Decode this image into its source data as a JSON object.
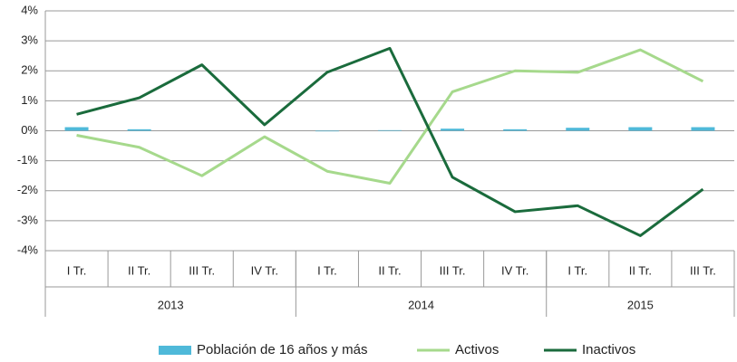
{
  "chart_data": {
    "type": "combo",
    "category_groups": [
      {
        "label": "2013",
        "categories": [
          "I Tr.",
          "II Tr.",
          "III Tr.",
          "IV Tr."
        ]
      },
      {
        "label": "2014",
        "categories": [
          "I Tr.",
          "II Tr.",
          "III Tr.",
          "IV Tr."
        ]
      },
      {
        "label": "2015",
        "categories": [
          "I Tr.",
          "II Tr.",
          "III Tr."
        ]
      }
    ],
    "series": [
      {
        "name": "Población de 16 años y más",
        "type": "bar",
        "color": "#4fb9d9",
        "values": [
          0.12,
          0.05,
          0,
          0,
          -0.02,
          0.02,
          0.07,
          0.05,
          0.1,
          0.12,
          0.12
        ]
      },
      {
        "name": "Activos",
        "type": "line",
        "color": "#a6d98c",
        "values": [
          -0.15,
          -0.55,
          -1.5,
          -0.2,
          -1.35,
          -1.75,
          1.3,
          2.0,
          1.95,
          2.7,
          1.65
        ]
      },
      {
        "name": "Inactivos",
        "type": "line",
        "color": "#1a6b3c",
        "values": [
          0.55,
          1.1,
          2.2,
          0.2,
          1.95,
          2.75,
          -1.55,
          -2.7,
          -2.5,
          -3.5,
          -1.95
        ]
      }
    ],
    "ylim": [
      -4,
      4
    ],
    "yticks": [
      {
        "value": -4,
        "label": "-4%"
      },
      {
        "value": -3,
        "label": "-3%"
      },
      {
        "value": -2,
        "label": "-2%"
      },
      {
        "value": -1,
        "label": "-1%"
      },
      {
        "value": 0,
        "label": "0%"
      },
      {
        "value": 1,
        "label": "1%"
      },
      {
        "value": 2,
        "label": "2%"
      },
      {
        "value": 3,
        "label": "3%"
      },
      {
        "value": 4,
        "label": "4%"
      }
    ],
    "grid": true,
    "legend": "bottom"
  }
}
